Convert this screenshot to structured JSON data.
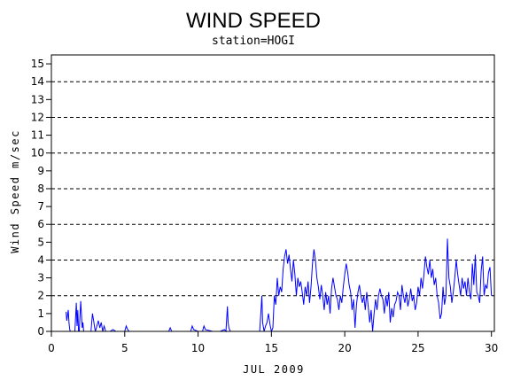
{
  "chart_data": {
    "type": "line",
    "title": "WIND SPEED",
    "subtitle": "station=HOGI",
    "xlabel": "JUL 2009",
    "ylabel": "Wind Speed m/sec",
    "xlim": [
      0,
      30.2
    ],
    "ylim": [
      0,
      15.5
    ],
    "x_ticks": [
      0,
      5,
      10,
      15,
      20,
      25,
      30
    ],
    "y_ticks": [
      0,
      1,
      2,
      3,
      4,
      5,
      6,
      7,
      8,
      9,
      10,
      11,
      12,
      13,
      14,
      15
    ],
    "grid_lines_y": [
      2,
      4,
      6,
      8,
      10,
      12,
      14
    ],
    "line_color": "#0000ff",
    "grid_color": "#000000",
    "series": [
      {
        "x": [
          1.0,
          1.05,
          1.1,
          1.15,
          1.2,
          1.25,
          1.3,
          1.4,
          1.5,
          1.6,
          1.7,
          1.75,
          1.8,
          1.85,
          1.9,
          2.0,
          2.1,
          2.15,
          2.2,
          2.3,
          2.4,
          2.5,
          2.6,
          2.7,
          2.8,
          2.9,
          2.95,
          3.0,
          3.1,
          3.2,
          3.3,
          3.4,
          3.5,
          3.6,
          3.7,
          3.8,
          4.0,
          4.2,
          4.4,
          4.6,
          4.8,
          5.0,
          5.1,
          5.2,
          5.3,
          5.5,
          6.0,
          7.0,
          8.0,
          8.1,
          8.2,
          8.3,
          9.0,
          9.5,
          9.6,
          9.7,
          10.0,
          10.3,
          10.4,
          10.5,
          11.0,
          11.5,
          11.8,
          11.9,
          12.0,
          12.05,
          12.1,
          12.2,
          12.5,
          13.0,
          13.5,
          14.0,
          14.2,
          14.3,
          14.35,
          14.4,
          14.5,
          14.6,
          14.7,
          14.8,
          14.9,
          15.0,
          15.1,
          15.2,
          15.3,
          15.4,
          15.5,
          15.6,
          15.7,
          15.8,
          15.9,
          16.0,
          16.1,
          16.2,
          16.3,
          16.4,
          16.5,
          16.6,
          16.7,
          16.8,
          16.9,
          17.0,
          17.1,
          17.2,
          17.3,
          17.4,
          17.5,
          17.6,
          17.7,
          17.8,
          17.9,
          18.0,
          18.1,
          18.2,
          18.3,
          18.4,
          18.5,
          18.6,
          18.7,
          18.8,
          18.9,
          19.0,
          19.1,
          19.2,
          19.3,
          19.4,
          19.5,
          19.6,
          19.7,
          19.8,
          19.9,
          20.0,
          20.1,
          20.2,
          20.3,
          20.4,
          20.5,
          20.6,
          20.7,
          20.8,
          20.9,
          21.0,
          21.1,
          21.2,
          21.3,
          21.4,
          21.5,
          21.6,
          21.7,
          21.8,
          21.9,
          22.0,
          22.1,
          22.2,
          22.3,
          22.4,
          22.5,
          22.6,
          22.7,
          22.8,
          22.9,
          23.0,
          23.1,
          23.2,
          23.3,
          23.4,
          23.5,
          23.6,
          23.7,
          23.8,
          23.9,
          24.0,
          24.1,
          24.2,
          24.3,
          24.4,
          24.5,
          24.6,
          24.7,
          24.8,
          24.9,
          25.0,
          25.1,
          25.2,
          25.3,
          25.4,
          25.5,
          25.6,
          25.7,
          25.8,
          25.9,
          26.0,
          26.1,
          26.2,
          26.3,
          26.4,
          26.5,
          26.6,
          26.7,
          26.8,
          26.9,
          27.0,
          27.1,
          27.2,
          27.3,
          27.4,
          27.5,
          27.6,
          27.7,
          27.8,
          27.9,
          28.0,
          28.1,
          28.2,
          28.3,
          28.4,
          28.5,
          28.6,
          28.7,
          28.8,
          28.9,
          29.0,
          29.1,
          29.2,
          29.3,
          29.4,
          29.5,
          29.6,
          29.7,
          29.8,
          29.9,
          30.0
        ],
        "y": [
          1.1,
          0.6,
          0.9,
          1.2,
          0.5,
          0.1,
          0.0,
          0.0,
          0.0,
          0.0,
          1.6,
          0.3,
          1.2,
          0.0,
          0.0,
          1.7,
          0.2,
          0.5,
          0.0,
          0.0,
          0.0,
          0.0,
          0.0,
          0.0,
          1.0,
          0.5,
          0.2,
          0.0,
          0.3,
          0.6,
          0.2,
          0.5,
          0.0,
          0.3,
          0.0,
          0.0,
          0.0,
          0.1,
          0.0,
          0.0,
          0.0,
          0.0,
          0.3,
          0.1,
          0.0,
          0.0,
          0.0,
          0.0,
          0.0,
          0.2,
          0.0,
          0.0,
          0.0,
          0.0,
          0.3,
          0.1,
          0.0,
          0.0,
          0.3,
          0.1,
          0.0,
          0.0,
          0.1,
          0.0,
          1.4,
          0.5,
          0.2,
          0.0,
          0.0,
          0.0,
          0.0,
          0.0,
          0.0,
          1.3,
          2.0,
          0.5,
          0.0,
          0.3,
          0.5,
          1.0,
          0.4,
          0.0,
          0.2,
          2.0,
          1.5,
          3.0,
          2.0,
          2.5,
          2.2,
          3.5,
          4.2,
          4.6,
          3.8,
          4.3,
          3.5,
          2.8,
          4.0,
          3.2,
          2.0,
          3.0,
          2.5,
          2.8,
          2.2,
          1.5,
          2.5,
          2.0,
          2.8,
          1.6,
          2.5,
          3.8,
          4.6,
          4.0,
          3.0,
          2.5,
          1.8,
          2.6,
          2.0,
          1.2,
          2.2,
          1.5,
          2.0,
          1.0,
          2.4,
          3.0,
          2.5,
          2.0,
          1.8,
          1.2,
          2.0,
          1.6,
          2.5,
          3.2,
          3.8,
          3.3,
          2.6,
          2.2,
          1.2,
          1.8,
          0.2,
          1.5,
          2.2,
          2.6,
          2.0,
          1.6,
          2.0,
          1.2,
          2.2,
          1.4,
          0.5,
          1.2,
          0.0,
          1.0,
          1.8,
          1.2,
          2.0,
          2.4,
          2.0,
          1.8,
          1.0,
          2.0,
          1.4,
          2.2,
          0.5,
          1.3,
          0.8,
          1.5,
          1.7,
          2.2,
          2.0,
          1.2,
          2.6,
          2.0,
          1.6,
          2.2,
          1.4,
          1.8,
          2.4,
          1.7,
          2.0,
          1.2,
          1.6,
          2.5,
          2.0,
          3.0,
          2.4,
          3.2,
          4.2,
          3.6,
          3.2,
          4.0,
          3.0,
          3.5,
          2.6,
          3.0,
          2.0,
          1.6,
          0.7,
          1.0,
          2.5,
          1.5,
          2.0,
          5.2,
          3.0,
          2.5,
          1.6,
          2.2,
          3.0,
          4.0,
          3.2,
          2.6,
          2.0,
          3.0,
          2.4,
          2.8,
          2.0,
          3.0,
          2.2,
          1.8,
          3.8,
          2.6,
          4.3,
          2.2,
          2.0,
          1.6,
          3.4,
          4.2,
          2.0,
          2.6,
          2.4,
          3.3,
          3.6,
          2.0
        ]
      }
    ]
  }
}
